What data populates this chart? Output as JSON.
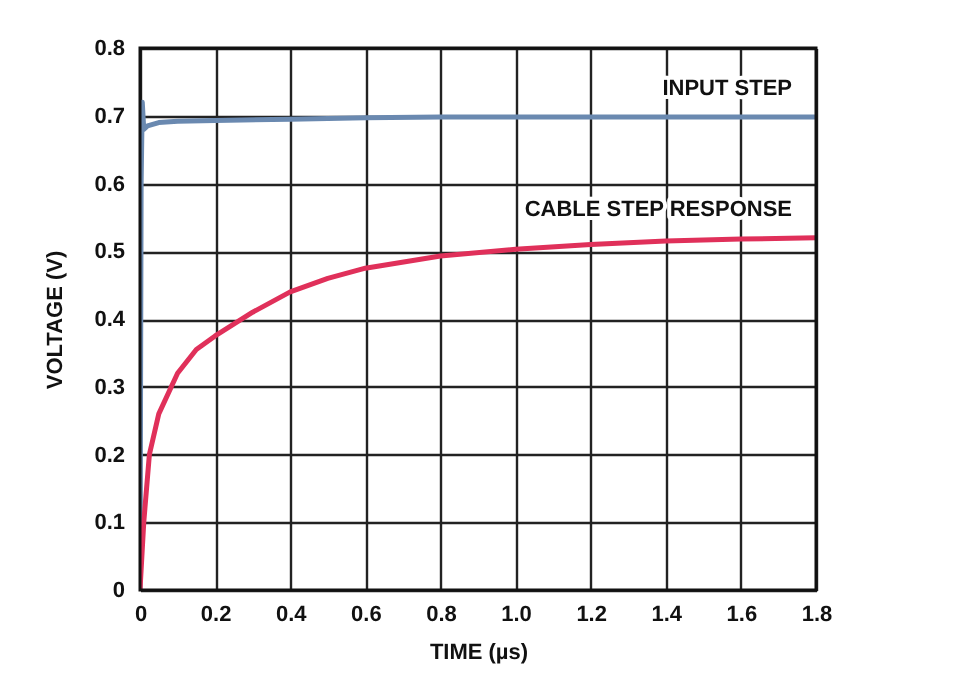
{
  "chart_data": {
    "type": "line",
    "xlabel": "TIME (µs)",
    "ylabel": "VOLTAGE (V)",
    "xlim": [
      0,
      1.8
    ],
    "xticks": [
      0,
      0.2,
      0.4,
      0.6,
      0.8,
      {
        "value": 1,
        "label": "1.0"
      },
      1.2,
      1.4,
      1.6,
      1.8
    ],
    "ylim": [
      0,
      0.8
    ],
    "yticks": [
      0,
      0.1,
      0.2,
      0.3,
      0.4,
      0.5,
      0.6,
      0.7,
      0.8
    ],
    "grid": true,
    "legend": false,
    "marker": "none",
    "line_style": "solid",
    "series": [
      {
        "name": "INPUT STEP",
        "color": "#6a89b0",
        "x": [
          0,
          0.003,
          0.006,
          0.01,
          0.02,
          0.05,
          0.1,
          0.2,
          0.4,
          0.6,
          0.8,
          1.0,
          1.2,
          1.4,
          1.6,
          1.8
        ],
        "values": [
          0,
          0.6,
          0.72,
          0.68,
          0.685,
          0.69,
          0.692,
          0.693,
          0.695,
          0.697,
          0.698,
          0.698,
          0.698,
          0.698,
          0.698,
          0.698
        ]
      },
      {
        "name": "CABLE STEP RESPONSE",
        "color": "#e0305a",
        "x": [
          0,
          0.01,
          0.025,
          0.05,
          0.1,
          0.15,
          0.2,
          0.3,
          0.4,
          0.5,
          0.6,
          0.8,
          1.0,
          1.2,
          1.4,
          1.6,
          1.8
        ],
        "values": [
          0,
          0.1,
          0.2,
          0.26,
          0.32,
          0.355,
          0.375,
          0.41,
          0.44,
          0.46,
          0.475,
          0.493,
          0.503,
          0.51,
          0.515,
          0.518,
          0.52
        ]
      }
    ]
  }
}
